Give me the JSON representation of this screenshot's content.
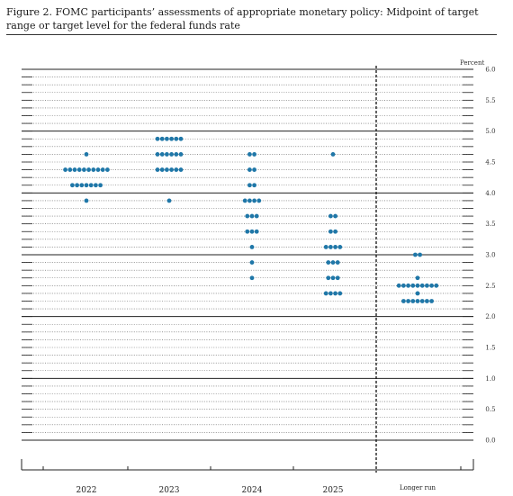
{
  "figure": {
    "title": "Figure 2.  FOMC participants’ assessments of appropriate monetary policy:  Midpoint of target range or target level for the federal funds rate"
  },
  "chart_data": {
    "type": "scatter",
    "subtype": "dot-plot",
    "title": "Figure 2.  FOMC participants’ assessments of appropriate monetary policy:  Midpoint of target range or target level for the federal funds rate",
    "ylabel": "Percent",
    "ylim": [
      0,
      6
    ],
    "yticks": [
      "0.0",
      "0.5",
      "1.0",
      "1.5",
      "2.0",
      "2.5",
      "3.0",
      "3.5",
      "4.0",
      "4.5",
      "5.0",
      "5.5",
      "6.0"
    ],
    "gridlines": "dotted at every 0.125, solid at every 1.0",
    "categories": [
      "2022",
      "2023",
      "2024",
      "2025",
      "Longer run"
    ],
    "dot_color": "#1f77a8",
    "series": [
      {
        "category": "2022",
        "points": [
          {
            "y": 4.625,
            "count": 1
          },
          {
            "y": 4.375,
            "count": 10
          },
          {
            "y": 4.125,
            "count": 7
          },
          {
            "y": 3.875,
            "count": 1
          }
        ]
      },
      {
        "category": "2023",
        "points": [
          {
            "y": 4.875,
            "count": 6
          },
          {
            "y": 4.625,
            "count": 6
          },
          {
            "y": 4.375,
            "count": 6
          },
          {
            "y": 3.875,
            "count": 1
          }
        ]
      },
      {
        "category": "2024",
        "points": [
          {
            "y": 4.625,
            "count": 2
          },
          {
            "y": 4.375,
            "count": 2
          },
          {
            "y": 4.125,
            "count": 2
          },
          {
            "y": 3.875,
            "count": 4
          },
          {
            "y": 3.625,
            "count": 3
          },
          {
            "y": 3.375,
            "count": 3
          },
          {
            "y": 3.125,
            "count": 1
          },
          {
            "y": 2.875,
            "count": 1
          },
          {
            "y": 2.625,
            "count": 1
          }
        ]
      },
      {
        "category": "2025",
        "points": [
          {
            "y": 4.625,
            "count": 1
          },
          {
            "y": 3.625,
            "count": 2
          },
          {
            "y": 3.375,
            "count": 2
          },
          {
            "y": 3.125,
            "count": 4
          },
          {
            "y": 2.875,
            "count": 3
          },
          {
            "y": 2.625,
            "count": 3
          },
          {
            "y": 2.375,
            "count": 4
          }
        ]
      },
      {
        "category": "Longer run",
        "points": [
          {
            "y": 3.0,
            "count": 2
          },
          {
            "y": 2.625,
            "count": 1
          },
          {
            "y": 2.5,
            "count": 9
          },
          {
            "y": 2.375,
            "count": 1
          },
          {
            "y": 2.25,
            "count": 7
          }
        ]
      }
    ]
  }
}
